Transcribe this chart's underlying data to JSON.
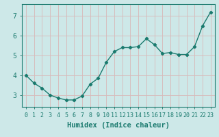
{
  "x": [
    0,
    1,
    2,
    3,
    4,
    5,
    6,
    7,
    8,
    9,
    10,
    11,
    12,
    13,
    14,
    15,
    16,
    17,
    18,
    19,
    20,
    21,
    22,
    23
  ],
  "y": [
    4.0,
    3.6,
    3.35,
    3.0,
    2.85,
    2.75,
    2.75,
    2.95,
    3.55,
    3.85,
    4.65,
    5.2,
    5.4,
    5.4,
    5.45,
    5.85,
    5.55,
    5.1,
    5.15,
    5.05,
    5.05,
    5.45,
    6.5,
    7.2
  ],
  "color": "#1a7a6e",
  "bg_color": "#cde8e8",
  "grid_color": "#b8d8d8",
  "xlabel": "Humidex (Indice chaleur)",
  "ylim": [
    2.4,
    7.6
  ],
  "xlim": [
    -0.5,
    23.5
  ],
  "yticks": [
    3,
    4,
    5,
    6,
    7
  ],
  "xticks": [
    0,
    1,
    2,
    3,
    4,
    5,
    6,
    7,
    8,
    9,
    10,
    11,
    12,
    13,
    14,
    15,
    16,
    17,
    18,
    19,
    20,
    21,
    22,
    23
  ],
  "xtick_labels": [
    "0",
    "1",
    "2",
    "3",
    "4",
    "5",
    "6",
    "7",
    "8",
    "9",
    "10",
    "11",
    "12",
    "13",
    "14",
    "15",
    "16",
    "17",
    "18",
    "19",
    "20",
    "21",
    "22",
    "23"
  ],
  "marker": "D",
  "markersize": 2.2,
  "linewidth": 1.0,
  "xlabel_fontsize": 7.5,
  "tick_fontsize": 6.0
}
